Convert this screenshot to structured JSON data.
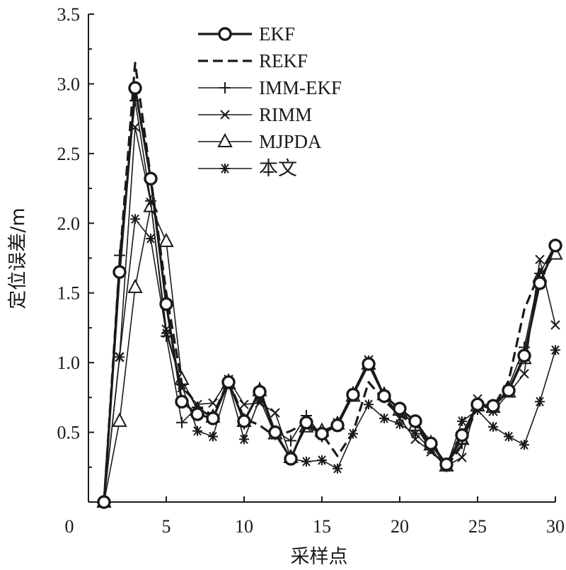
{
  "chart_data": {
    "type": "line",
    "xlabel": "采样点",
    "ylabel": "定位误差/m",
    "xlim": [
      0,
      30
    ],
    "ylim": [
      0,
      3.5
    ],
    "xticks": [
      "0",
      "5",
      "10",
      "15",
      "20",
      "25",
      "30"
    ],
    "yticks": [
      "0.5",
      "1.0",
      "1.5",
      "2.0",
      "2.5",
      "3.0",
      "3.5"
    ],
    "grid": false,
    "legend_position": "top-center",
    "x": [
      1,
      2,
      3,
      4,
      5,
      6,
      7,
      8,
      9,
      10,
      11,
      12,
      13,
      14,
      15,
      16,
      17,
      18,
      19,
      20,
      21,
      22,
      23,
      24,
      25,
      26,
      27,
      28,
      29,
      30
    ],
    "series": [
      {
        "name": "EKF",
        "marker": "circle",
        "dash": "solid",
        "values": [
          0.0,
          1.65,
          2.97,
          2.32,
          1.42,
          0.72,
          0.63,
          0.6,
          0.86,
          0.58,
          0.79,
          0.5,
          0.31,
          0.57,
          0.49,
          0.55,
          0.77,
          0.99,
          0.76,
          0.67,
          0.58,
          0.42,
          0.27,
          0.48,
          0.7,
          0.69,
          0.8,
          1.05,
          1.57,
          1.84
        ]
      },
      {
        "name": "REKF",
        "marker": "none",
        "dash": "dashed",
        "values": [
          0.0,
          1.72,
          3.15,
          2.33,
          1.5,
          0.85,
          0.69,
          0.62,
          0.87,
          0.6,
          0.55,
          0.47,
          0.51,
          0.57,
          0.49,
          0.33,
          0.5,
          0.86,
          0.73,
          0.62,
          0.56,
          0.38,
          0.25,
          0.41,
          0.69,
          0.68,
          0.87,
          1.38,
          1.65,
          1.82
        ]
      },
      {
        "name": "IMM-EKF",
        "marker": "plus",
        "dash": "solid",
        "values": [
          0.0,
          1.77,
          2.88,
          2.16,
          1.19,
          0.57,
          0.68,
          0.61,
          0.88,
          0.56,
          0.82,
          0.51,
          0.44,
          0.62,
          0.47,
          0.57,
          0.79,
          1.01,
          0.75,
          0.64,
          0.56,
          0.44,
          0.27,
          0.42,
          0.7,
          0.66,
          0.83,
          1.11,
          1.64,
          1.85
        ]
      },
      {
        "name": "RIMM",
        "marker": "x",
        "dash": "solid",
        "values": [
          0.0,
          1.04,
          2.69,
          2.15,
          1.24,
          0.82,
          0.7,
          0.71,
          0.88,
          0.7,
          0.71,
          0.64,
          0.32,
          0.54,
          0.49,
          0.57,
          0.78,
          1.02,
          0.77,
          0.6,
          0.45,
          0.36,
          0.26,
          0.32,
          0.74,
          0.65,
          0.78,
          0.92,
          1.74,
          1.27
        ]
      },
      {
        "name": "MJPDA",
        "marker": "triangle",
        "dash": "solid",
        "values": [
          0.0,
          0.58,
          1.54,
          2.12,
          1.87,
          0.88,
          0.66,
          0.61,
          0.85,
          0.58,
          0.8,
          0.49,
          0.32,
          0.54,
          0.51,
          0.56,
          0.76,
          0.99,
          0.77,
          0.66,
          0.55,
          0.41,
          0.26,
          0.45,
          0.69,
          0.68,
          0.79,
          1.03,
          1.62,
          1.78
        ]
      },
      {
        "name": "本文",
        "marker": "asterisk",
        "dash": "solid",
        "values": [
          0.0,
          1.04,
          2.03,
          1.89,
          1.21,
          0.84,
          0.51,
          0.47,
          0.85,
          0.45,
          0.74,
          0.48,
          0.31,
          0.29,
          0.3,
          0.24,
          0.49,
          0.7,
          0.6,
          0.56,
          0.49,
          0.38,
          0.25,
          0.58,
          0.66,
          0.54,
          0.47,
          0.41,
          0.72,
          1.09
        ]
      }
    ]
  }
}
